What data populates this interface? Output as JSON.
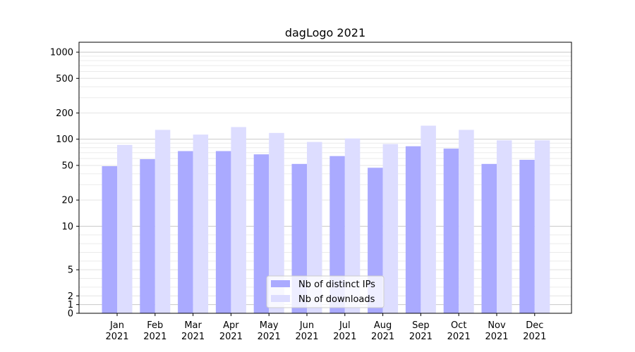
{
  "chart_data": {
    "type": "bar",
    "title": "dagLogo 2021",
    "xlabel": "",
    "ylabel": "",
    "y_scale": "symlog",
    "ylim": [
      0,
      1300
    ],
    "y_ticks": [
      0,
      1,
      2,
      5,
      10,
      20,
      50,
      100,
      200,
      500,
      1000
    ],
    "y_tick_labels": [
      "0",
      "1",
      "2",
      "5",
      "10",
      "20",
      "50",
      "100",
      "200",
      "500",
      "1000"
    ],
    "categories": [
      "Jan\n2021",
      "Feb\n2021",
      "Mar\n2021",
      "Apr\n2021",
      "May\n2021",
      "Jun\n2021",
      "Jul\n2021",
      "Aug\n2021",
      "Sep\n2021",
      "Oct\n2021",
      "Nov\n2021",
      "Dec\n2021"
    ],
    "series": [
      {
        "name": "Nb of distinct IPs",
        "color": "#aaaaff",
        "values": [
          49,
          59,
          73,
          73,
          67,
          52,
          64,
          47,
          83,
          78,
          52,
          58
        ]
      },
      {
        "name": "Nb of downloads",
        "color": "#ddddff",
        "values": [
          86,
          128,
          113,
          138,
          118,
          93,
          102,
          88,
          143,
          128,
          97,
          97
        ]
      }
    ],
    "grid": true,
    "legend_position": "bottom-center"
  }
}
